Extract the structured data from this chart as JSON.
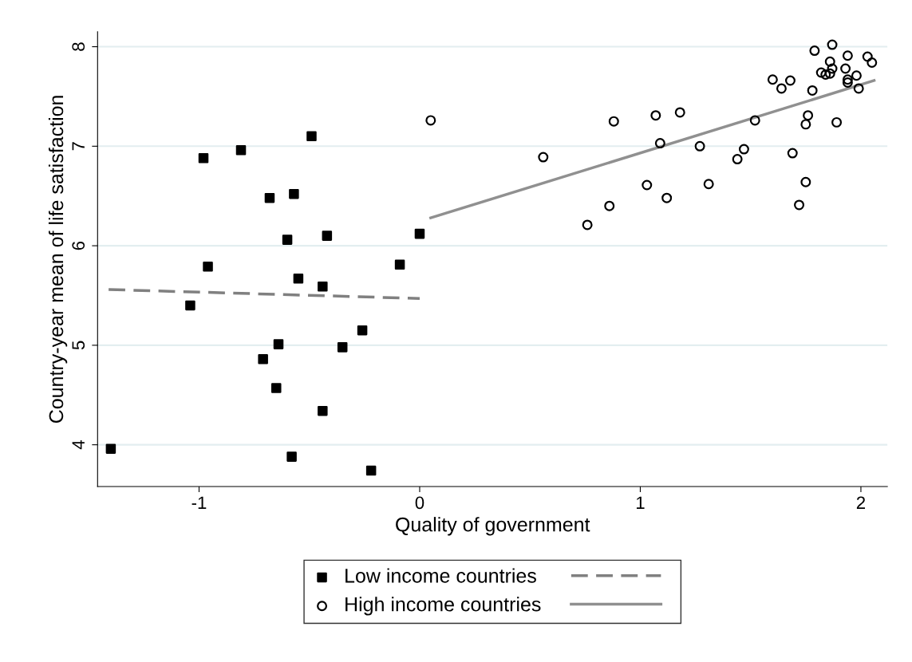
{
  "chart_data": {
    "type": "scatter",
    "xlabel": "Quality of government",
    "ylabel": "Country-year mean of life satisfaction",
    "xlim": [
      -1.46,
      2.12
    ],
    "ylim": [
      3.58,
      8.15
    ],
    "xticks": [
      -1,
      0,
      1,
      2
    ],
    "yticks": [
      4,
      5,
      6,
      7,
      8
    ],
    "grid": "y",
    "legend": "bottom",
    "series": [
      {
        "name": "Low income countries",
        "marker": "square",
        "color": "#000000",
        "x": [
          -1.4,
          -1.04,
          -0.98,
          -0.96,
          -0.81,
          -0.71,
          -0.68,
          -0.64,
          -0.65,
          -0.6,
          -0.57,
          -0.58,
          -0.55,
          -0.49,
          -0.44,
          -0.44,
          -0.42,
          -0.35,
          -0.26,
          -0.22,
          -0.09,
          0.0
        ],
        "values": [
          3.96,
          5.4,
          6.88,
          5.79,
          6.96,
          4.86,
          6.48,
          5.01,
          4.57,
          6.06,
          6.52,
          3.88,
          5.67,
          7.1,
          4.34,
          5.59,
          6.1,
          4.98,
          5.15,
          3.74,
          5.81,
          6.12
        ]
      },
      {
        "name": "High income countries",
        "marker": "circle",
        "color": "#000000",
        "x": [
          0.05,
          0.56,
          0.76,
          0.86,
          0.88,
          1.03,
          1.07,
          1.09,
          1.12,
          1.18,
          1.27,
          1.31,
          1.44,
          1.47,
          1.52,
          1.79,
          1.87,
          1.94,
          2.03,
          2.05,
          1.86,
          1.87,
          1.82,
          1.84,
          1.86,
          1.93,
          1.98,
          1.94,
          1.94,
          1.99,
          1.6,
          1.68,
          1.64,
          1.78,
          1.76,
          1.75,
          1.89,
          1.69,
          1.75,
          1.72
        ],
        "values": [
          7.26,
          6.89,
          6.21,
          6.4,
          7.25,
          6.61,
          7.31,
          7.03,
          6.48,
          7.34,
          7.0,
          6.62,
          6.87,
          6.97,
          7.26,
          7.96,
          8.02,
          7.91,
          7.9,
          7.84,
          7.85,
          7.78,
          7.74,
          7.72,
          7.73,
          7.78,
          7.71,
          7.64,
          7.67,
          7.58,
          7.67,
          7.66,
          7.58,
          7.56,
          7.31,
          7.22,
          7.24,
          6.93,
          6.64,
          6.41
        ]
      },
      {
        "type": "line",
        "line_style": "dashed",
        "color": "#808080",
        "x": [
          -1.41,
          0.0
        ],
        "values": [
          5.56,
          5.47
        ]
      },
      {
        "type": "line",
        "line_style": "solid",
        "color": "#909090",
        "x": [
          0.05,
          2.06
        ],
        "values": [
          6.28,
          7.66
        ]
      }
    ]
  }
}
